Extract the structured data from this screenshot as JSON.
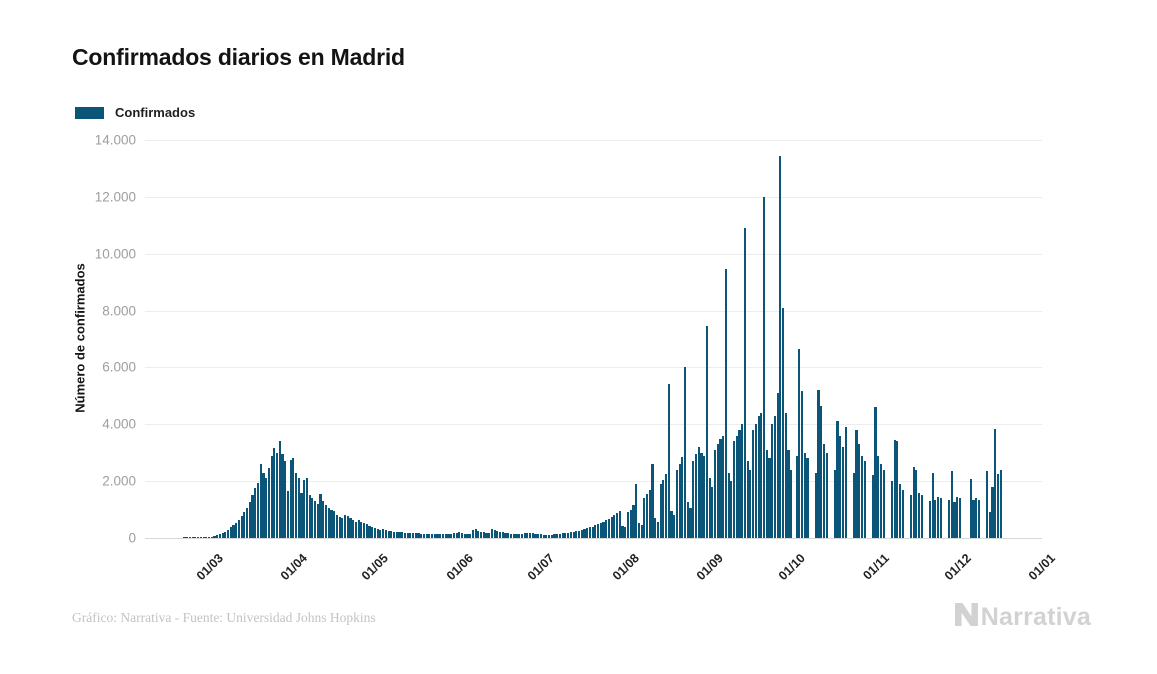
{
  "header": {
    "title": "Confirmados diarios en Madrid"
  },
  "legend": {
    "label": "Confirmados",
    "color": "#0a5578"
  },
  "footer": {
    "credit": "Gráfico: Narrativa - Fuente: Universidad Johns Hopkins",
    "brand": "Narrativa"
  },
  "chart_data": {
    "type": "bar",
    "title": "Confirmados diarios en Madrid",
    "series_name": "Confirmados",
    "xlabel": "",
    "ylabel": "Número de confirmados",
    "ylim": [
      0,
      14000
    ],
    "grid": "horizontal-only",
    "legend_position": "top-left",
    "bar_color": "#0a5578",
    "y_ticks": [
      {
        "label": "0",
        "value": 0
      },
      {
        "label": "2.000",
        "value": 2000
      },
      {
        "label": "4.000",
        "value": 4000
      },
      {
        "label": "6.000",
        "value": 6000
      },
      {
        "label": "8.000",
        "value": 8000
      },
      {
        "label": "10.000",
        "value": 10000
      },
      {
        "label": "12.000",
        "value": 12000
      },
      {
        "label": "14.000",
        "value": 14000
      }
    ],
    "x_ticks": [
      {
        "label": "01/03",
        "day": 9
      },
      {
        "label": "01/04",
        "day": 40
      },
      {
        "label": "01/05",
        "day": 70
      },
      {
        "label": "01/06",
        "day": 101
      },
      {
        "label": "01/07",
        "day": 131
      },
      {
        "label": "01/08",
        "day": 162
      },
      {
        "label": "01/09",
        "day": 193
      },
      {
        "label": "01/10",
        "day": 223
      },
      {
        "label": "01/11",
        "day": 254
      },
      {
        "label": "01/12",
        "day": 284
      },
      {
        "label": "01/01",
        "day": 315
      }
    ],
    "start_date": "21/02",
    "end_date": "19/12",
    "values": [
      0,
      0,
      1,
      1,
      2,
      3,
      5,
      8,
      12,
      18,
      25,
      35,
      50,
      70,
      95,
      130,
      170,
      220,
      290,
      370,
      450,
      540,
      640,
      760,
      900,
      1050,
      1250,
      1500,
      1750,
      1950,
      2600,
      2300,
      2100,
      2450,
      2900,
      3150,
      3000,
      3400,
      2950,
      2700,
      1650,
      2750,
      2800,
      2300,
      2100,
      1600,
      2050,
      2100,
      1500,
      1400,
      1300,
      1200,
      1550,
      1300,
      1150,
      1050,
      1000,
      950,
      800,
      750,
      700,
      820,
      760,
      700,
      620,
      560,
      640,
      580,
      520,
      480,
      430,
      390,
      350,
      310,
      280,
      300,
      280,
      260,
      240,
      220,
      200,
      210,
      200,
      190,
      180,
      170,
      160,
      170,
      160,
      150,
      145,
      140,
      135,
      140,
      150,
      145,
      135,
      125,
      130,
      140,
      150,
      160,
      180,
      200,
      170,
      150,
      140,
      130,
      280,
      300,
      260,
      220,
      200,
      180,
      160,
      300,
      280,
      250,
      220,
      200,
      180,
      160,
      150,
      140,
      135,
      140,
      150,
      160,
      170,
      180,
      190,
      150,
      140,
      130,
      120,
      110,
      105,
      120,
      130,
      140,
      150,
      160,
      170,
      185,
      200,
      220,
      240,
      260,
      285,
      310,
      340,
      370,
      400,
      440,
      480,
      520,
      570,
      620,
      680,
      740,
      800,
      870,
      950,
      420,
      380,
      900,
      1000,
      1150,
      1900,
      520,
      450,
      1400,
      1550,
      1700,
      2600,
      700,
      560,
      1900,
      2050,
      2250,
      5400,
      950,
      800,
      2400,
      2600,
      2850,
      6000,
      1250,
      1050,
      2700,
      2950,
      3200,
      3000,
      2900,
      7450,
      2100,
      1800,
      3100,
      3300,
      3500,
      3600,
      9450,
      2300,
      2000,
      3400,
      3600,
      3800,
      4000,
      10900,
      2700,
      2400,
      3800,
      4000,
      4300,
      4400,
      12000,
      3100,
      2800,
      4000,
      4300,
      5100,
      13450,
      8090,
      4400,
      3100,
      2400,
      0,
      2900,
      6640,
      5170,
      3000,
      2800,
      0,
      0,
      2300,
      5200,
      4650,
      3300,
      3000,
      0,
      0,
      2400,
      4100,
      3600,
      3200,
      3900,
      0,
      0,
      2300,
      3800,
      3300,
      2900,
      2700,
      0,
      0,
      2200,
      4600,
      2900,
      2600,
      2400,
      0,
      0,
      2000,
      3450,
      3400,
      1900,
      1700,
      0,
      0,
      1500,
      2500,
      2400,
      1600,
      1500,
      0,
      0,
      1300,
      2300,
      1350,
      1450,
      1400,
      0,
      0,
      1350,
      2340,
      1270,
      1450,
      1400,
      0,
      0,
      0,
      2060,
      1350,
      1400,
      1350,
      0,
      0,
      2350,
      900,
      1780,
      3850,
      2250,
      2400
    ]
  }
}
